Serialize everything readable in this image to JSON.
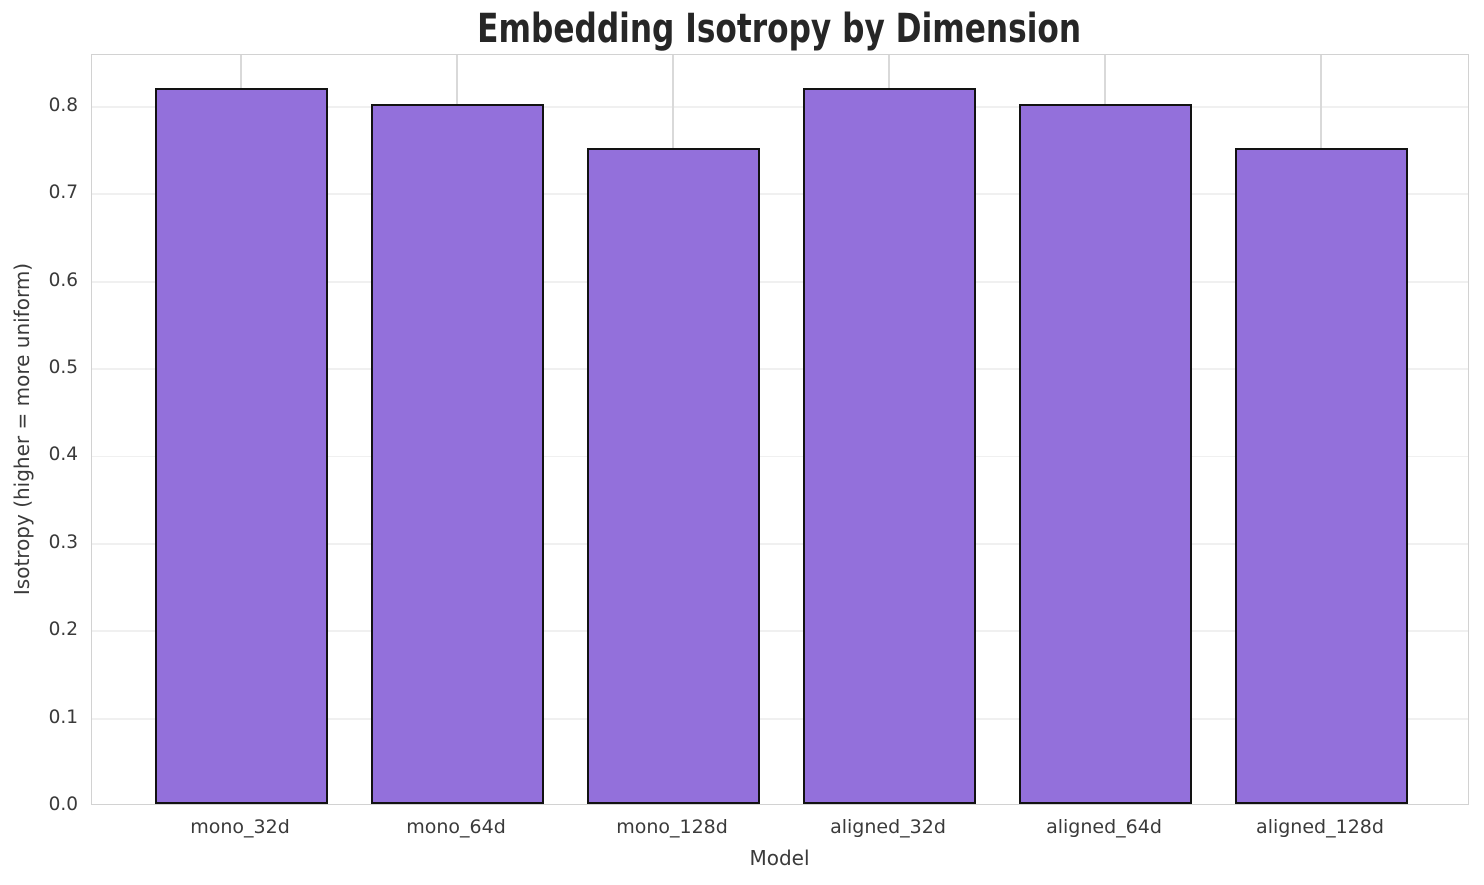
{
  "chart_data": {
    "type": "bar",
    "title": "Embedding Isotropy by Dimension",
    "xlabel": "Model",
    "ylabel": "Isotropy (higher = more uniform)",
    "categories": [
      "mono_32d",
      "mono_64d",
      "mono_128d",
      "aligned_32d",
      "aligned_64d",
      "aligned_128d"
    ],
    "values": [
      0.819,
      0.801,
      0.751,
      0.819,
      0.801,
      0.751
    ],
    "ylim": [
      0,
      0.86
    ],
    "yticks": [
      0.0,
      0.1,
      0.2,
      0.3,
      0.4,
      0.5,
      0.6,
      0.7,
      0.8
    ],
    "ytick_labels": [
      "0.0",
      "0.1",
      "0.2",
      "0.3",
      "0.4",
      "0.5",
      "0.6",
      "0.7",
      "0.8"
    ],
    "grid": true,
    "legend": null,
    "bar_color": "#9370db",
    "bar_edge_color": "#121212",
    "background_color": "#ffffff",
    "gridline_h_color": "#f0f0f0",
    "gridline_v_color": "#d9d9d9",
    "spine_color": "#d2d2d2"
  }
}
